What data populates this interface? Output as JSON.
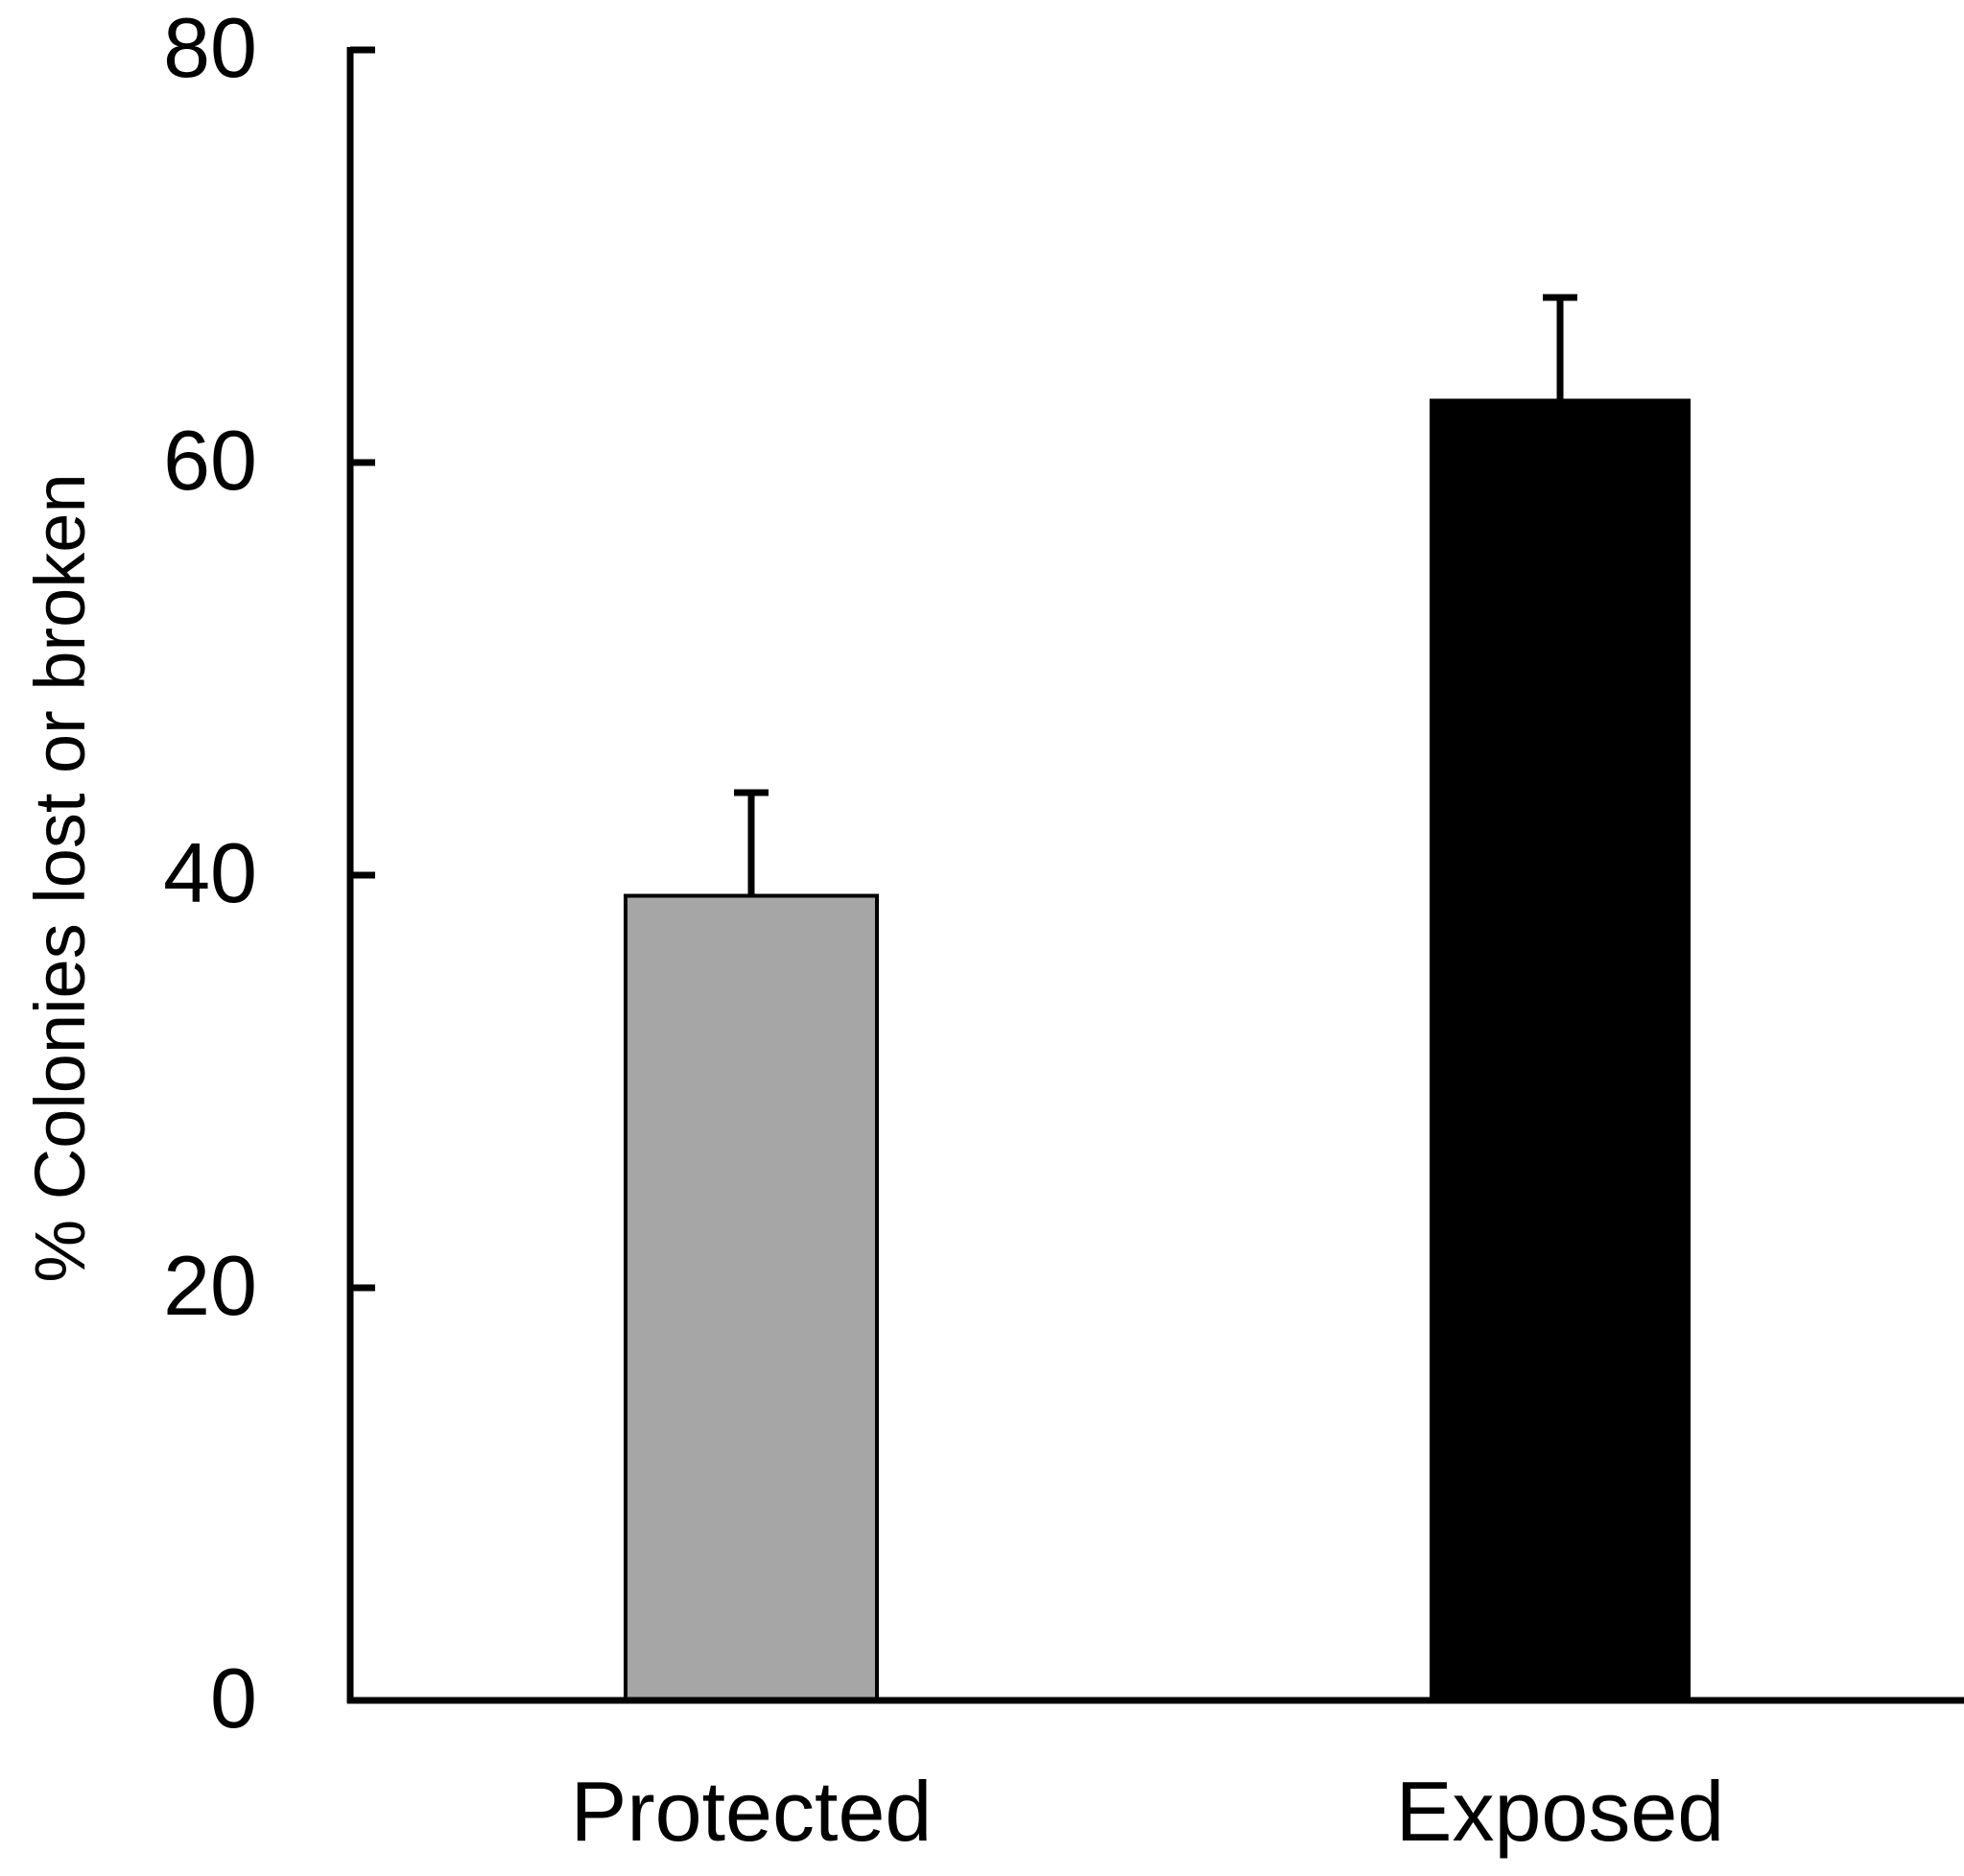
{
  "chart_data": {
    "type": "bar",
    "categories": [
      "Protected",
      "Exposed"
    ],
    "values": [
      39,
      63
    ],
    "error_upper": [
      44,
      68
    ],
    "bar_colors": [
      "#a6a6a6",
      "#000000"
    ],
    "ylabel": "% Colonies lost or broken",
    "xlabel": "",
    "ylim": [
      0,
      80
    ],
    "yticks": [
      0,
      20,
      40,
      60,
      80
    ],
    "grid": false,
    "legend": "none"
  }
}
